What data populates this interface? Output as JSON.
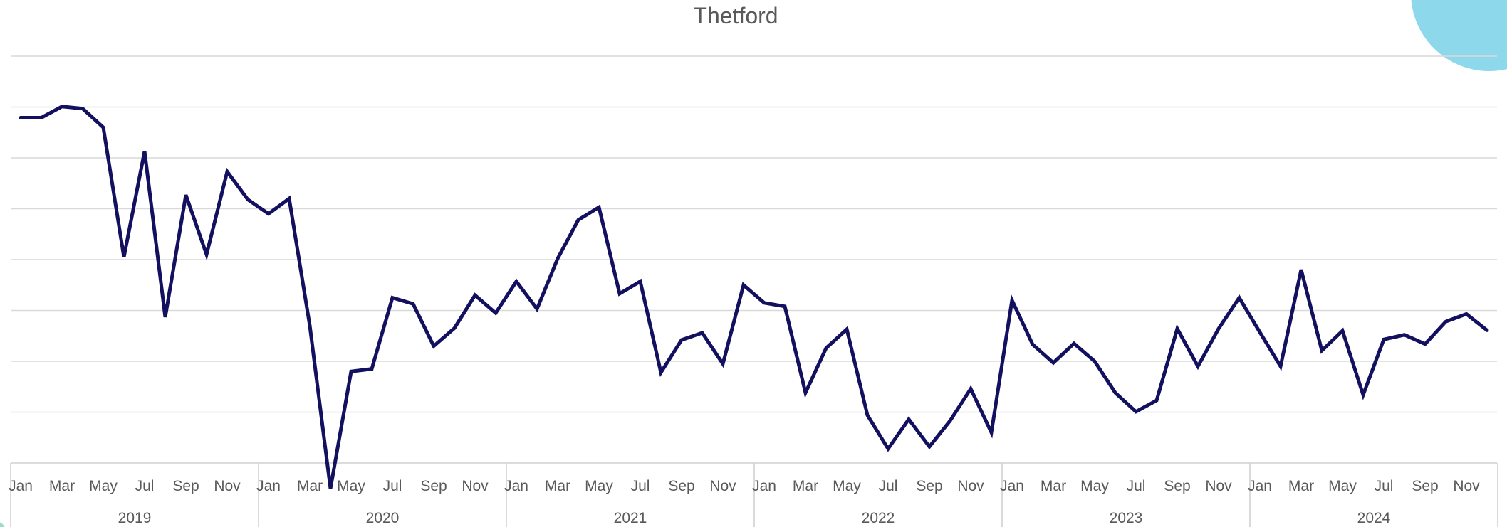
{
  "chart_data": {
    "type": "line",
    "title": "Thetford",
    "xlabel": "",
    "ylabel": "",
    "y_tick_labels_visible": false,
    "grid": true,
    "legend": "none",
    "ylim": [
      0,
      8
    ],
    "colors": {
      "line": "#13115f",
      "grid": "#d9d9d9",
      "text": "#595959"
    },
    "years": [
      "2019",
      "2020",
      "2021",
      "2022",
      "2023",
      "2024"
    ],
    "month_tick_labels": [
      "Jan",
      "Mar",
      "May",
      "Jul",
      "Sep",
      "Nov"
    ],
    "x": [
      "2019-01",
      "2019-02",
      "2019-03",
      "2019-04",
      "2019-05",
      "2019-06",
      "2019-07",
      "2019-08",
      "2019-09",
      "2019-10",
      "2019-11",
      "2019-12",
      "2020-01",
      "2020-02",
      "2020-03",
      "2020-04",
      "2020-05",
      "2020-06",
      "2020-07",
      "2020-08",
      "2020-09",
      "2020-10",
      "2020-11",
      "2020-12",
      "2021-01",
      "2021-02",
      "2021-03",
      "2021-04",
      "2021-05",
      "2021-06",
      "2021-07",
      "2021-08",
      "2021-09",
      "2021-10",
      "2021-11",
      "2021-12",
      "2022-01",
      "2022-02",
      "2022-03",
      "2022-04",
      "2022-05",
      "2022-06",
      "2022-07",
      "2022-08",
      "2022-09",
      "2022-10",
      "2022-11",
      "2022-12",
      "2023-01",
      "2023-02",
      "2023-03",
      "2023-04",
      "2023-05",
      "2023-06",
      "2023-07",
      "2023-08",
      "2023-09",
      "2023-10",
      "2023-11",
      "2023-12",
      "2024-01",
      "2024-02",
      "2024-03",
      "2024-04",
      "2024-05",
      "2024-06",
      "2024-07",
      "2024-08",
      "2024-09",
      "2024-10",
      "2024-11",
      "2024-12"
    ],
    "series": [
      {
        "values": [
          6.79,
          6.79,
          7.01,
          6.97,
          6.6,
          4.05,
          6.13,
          2.87,
          5.27,
          4.1,
          5.73,
          5.18,
          4.9,
          5.2,
          2.7,
          -0.5,
          1.8,
          1.85,
          3.25,
          3.13,
          2.3,
          2.65,
          3.3,
          2.95,
          3.57,
          3.03,
          4.02,
          4.78,
          5.03,
          3.33,
          3.57,
          1.78,
          2.42,
          2.56,
          1.95,
          3.5,
          3.15,
          3.08,
          1.38,
          2.26,
          2.63,
          0.94,
          0.28,
          0.86,
          0.32,
          0.83,
          1.46,
          0.6,
          3.2,
          2.33,
          1.97,
          2.35,
          2.0,
          1.38,
          1.01,
          1.23,
          2.64,
          1.9,
          2.64,
          3.25,
          2.57,
          1.9,
          3.8,
          2.21,
          2.6,
          1.34,
          2.43,
          2.52,
          2.34,
          2.78,
          2.93,
          2.61
        ]
      }
    ]
  }
}
